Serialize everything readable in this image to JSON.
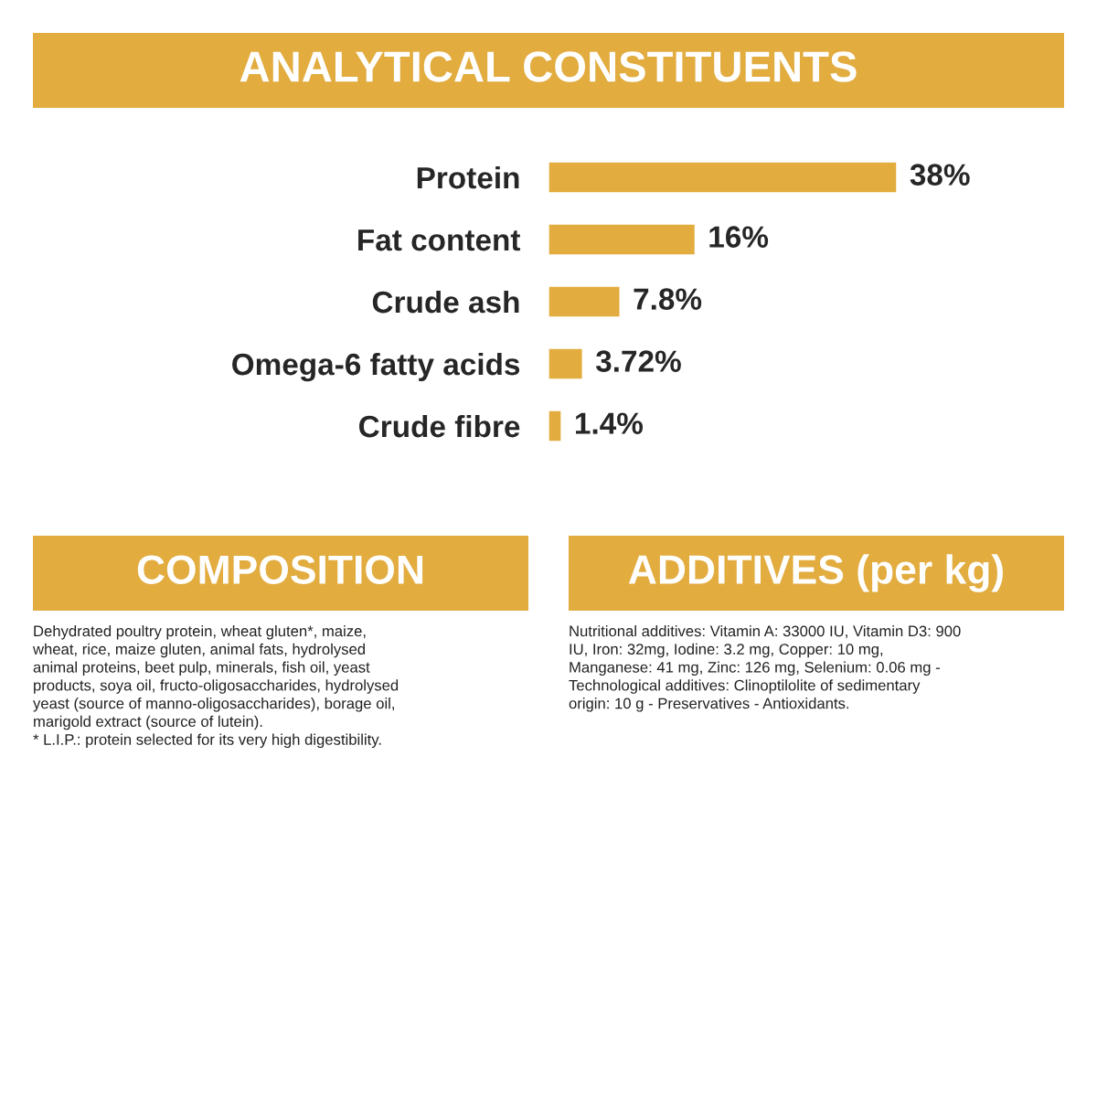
{
  "chart_data": {
    "type": "bar",
    "orientation": "horizontal",
    "title": "ANALYTICAL CONSTITUENTS",
    "categories": [
      "Protein",
      "Fat content",
      "Crude ash",
      "Omega-6 fatty acids",
      "Crude fibre"
    ],
    "values": [
      38,
      16,
      7.8,
      3.72,
      1.4
    ],
    "value_labels": [
      "38%",
      "16%",
      "7.8%",
      "3.72%",
      "1.4%"
    ],
    "color": "#e2ac3f",
    "tick_labels": "y",
    "grid": false,
    "legend": false,
    "annotations": [
      "COMPOSITION",
      "Dehydrated poultry protein, wheat gluten*, maize,\nwheat, rice, maize gluten, animal fats, hydrolysed\nanimal proteins, beet pulp, minerals, fish oil, yeast\nproducts, soya oil, fructo-oligosaccharides, hydrolysed\nyeast (source of manno-oligosaccharides), borage oil,\nmarigold extract (source of lutein).\n* L.I.P.: protein selected for its very high digestibility.",
      "ADDITIVES (per kg)",
      "Nutritional additives: Vitamin A: 33000 IU, Vitamin D3: 900\nIU, Iron: 32mg, Iodine: 3.2 mg, Copper: 10 mg,\nManganese: 41 mg, Zinc: 126 mg, Selenium: 0.06 mg -\nTechnological additives: Clinoptilolite of sedimentary\norigin: 10 g - Preservatives - Antioxidants."
    ]
  }
}
